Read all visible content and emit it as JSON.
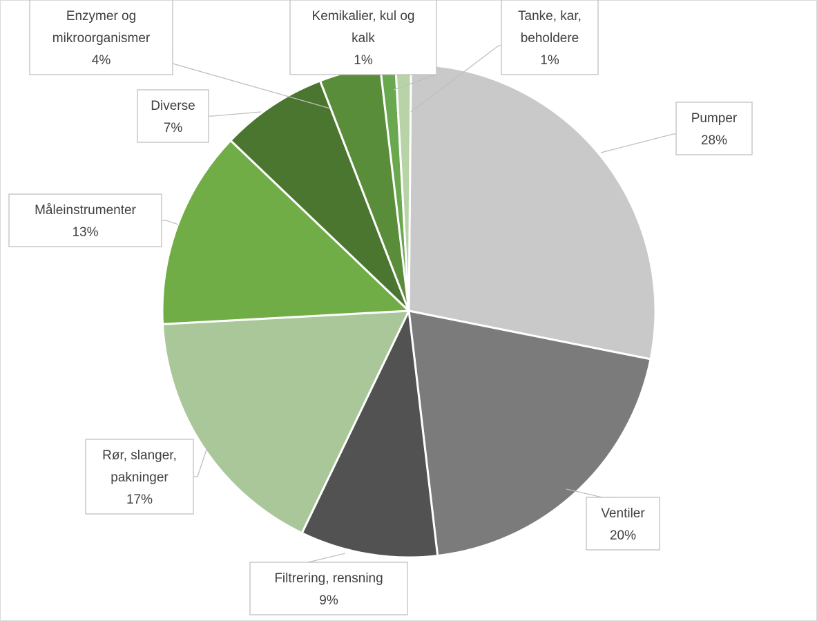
{
  "chart_data": {
    "type": "pie",
    "title": "",
    "legend": "none",
    "slices": [
      {
        "category": "Pumper",
        "value": 28,
        "label_lines": [
          "Pumper",
          "28%"
        ],
        "color": "#c9c9c9"
      },
      {
        "category": "Ventiler",
        "value": 20,
        "label_lines": [
          "Ventiler",
          "20%"
        ],
        "color": "#7b7b7b"
      },
      {
        "category": "Filtrering, rensning",
        "value": 9,
        "label_lines": [
          "Filtrering, rensning",
          "9%"
        ],
        "color": "#525252"
      },
      {
        "category": "Rør, slanger, pakninger",
        "value": 17,
        "label_lines": [
          "Rør, slanger,",
          "pakninger",
          "17%"
        ],
        "color": "#a9c799"
      },
      {
        "category": "Måleinstrumenter",
        "value": 13,
        "label_lines": [
          "Måleinstrumenter",
          "13%"
        ],
        "color": "#70ad47"
      },
      {
        "category": "Diverse",
        "value": 7,
        "label_lines": [
          "Diverse",
          "7%"
        ],
        "color": "#4a7630"
      },
      {
        "category": "Enzymer og mikroorganismer",
        "value": 4,
        "label_lines": [
          "Enzymer og",
          "mikroorganismer",
          "4%"
        ],
        "color": "#5a8d3a"
      },
      {
        "category": "Kemikalier, kul og kalk",
        "value": 1,
        "label_lines": [
          "Kemikalier, kul og",
          "kalk",
          "1%"
        ],
        "color": "#6aa84f"
      },
      {
        "category": "Tanke, kar, beholdere",
        "value": 1,
        "label_lines": [
          "Tanke, kar,",
          "beholdere",
          "1%"
        ],
        "color": "#b7d3a7"
      }
    ]
  }
}
